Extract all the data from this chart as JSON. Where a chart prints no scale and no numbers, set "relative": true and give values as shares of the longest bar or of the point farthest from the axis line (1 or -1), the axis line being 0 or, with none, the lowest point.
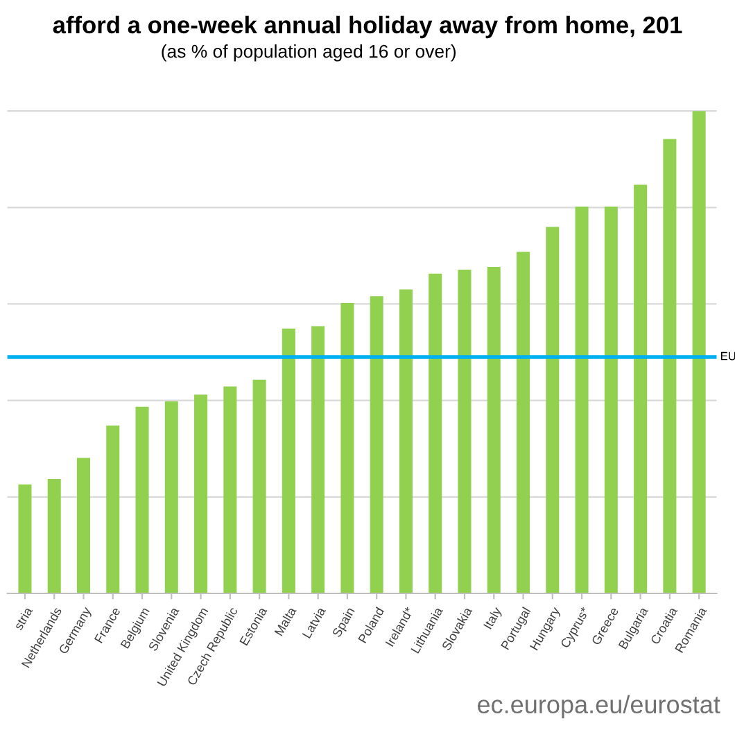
{
  "chart_data": {
    "type": "bar",
    "title": "afford a one-week annual holiday away from home, 201",
    "subtitle": "(as % of population aged 16 or over)",
    "categories": [
      "stria",
      "Netherlands",
      "Germany",
      "France",
      "Belgium",
      "Slovenia",
      "United Kingdom",
      "Czech Republic",
      "Estonia",
      "Malta",
      "Latvia",
      "Spain",
      "Poland",
      "Ireland*",
      "Lithuania",
      "Slovakia",
      "Italy",
      "Portugal",
      "Hungary",
      "Cyprus*",
      "Greece",
      "Bulgaria",
      "Croatia",
      "Romania"
    ],
    "values": [
      0.226,
      0.237,
      0.281,
      0.348,
      0.387,
      0.398,
      0.412,
      0.429,
      0.443,
      0.549,
      0.554,
      0.602,
      0.616,
      0.63,
      0.663,
      0.671,
      0.677,
      0.708,
      0.76,
      0.802,
      0.802,
      0.847,
      0.942,
      1
    ],
    "color": "#92d050",
    "relative": true,
    "grid": "y",
    "ref_lines": [
      {
        "axis": "y",
        "value": 0.49,
        "label": "EU",
        "color": "#00b0f0"
      }
    ],
    "annotations": [
      "ec.europa.eu/eurostat"
    ]
  }
}
